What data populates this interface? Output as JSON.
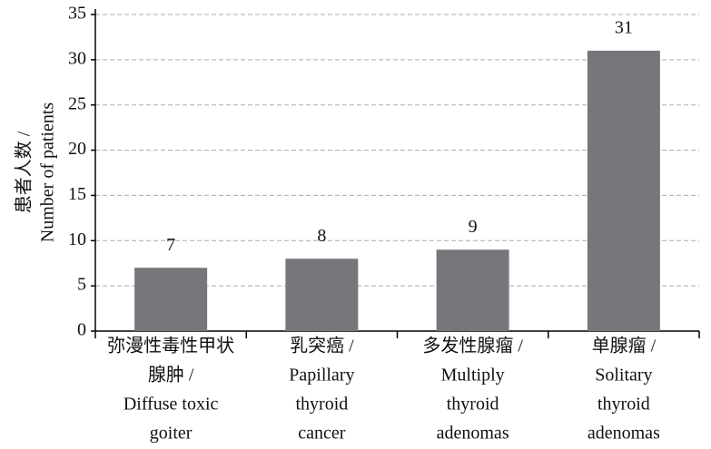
{
  "chart_data": {
    "type": "bar",
    "ylabel": [
      "患者人数 /",
      "Number of patients"
    ],
    "categories": [
      [
        "弥漫性毒性甲状",
        "腺肿 /",
        "Diffuse toxic",
        "goiter"
      ],
      [
        "乳突癌 /",
        "Papillary",
        "thyroid",
        "cancer"
      ],
      [
        "多发性腺瘤 /",
        "Multiply",
        "thyroid",
        "adenomas"
      ],
      [
        "单腺瘤 /",
        "Solitary",
        "thyroid",
        "adenomas"
      ]
    ],
    "values": [
      7,
      8,
      9,
      31
    ],
    "color": "#77777b",
    "ylim": [
      0,
      35
    ],
    "yticks": [
      0,
      5,
      10,
      15,
      20,
      25,
      30,
      35
    ],
    "grid": true
  }
}
